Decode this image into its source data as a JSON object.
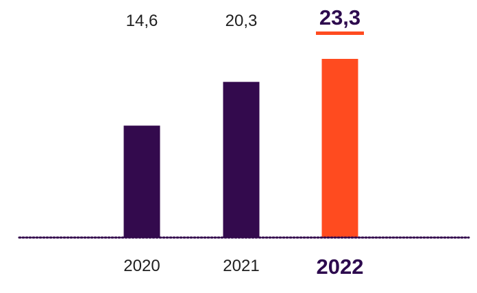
{
  "chart_data": {
    "type": "bar",
    "categories": [
      "2020",
      "2021",
      "2022"
    ],
    "values": [
      14.6,
      20.3,
      23.3
    ],
    "value_labels": [
      "14,6",
      "20,3",
      "23,3"
    ],
    "highlight_index": 2,
    "ylim": [
      0,
      25
    ],
    "grid": false,
    "legend": "none",
    "colors": {
      "bar": "#330a4d",
      "highlight_bar": "#ff4b1f",
      "highlight_underline": "#ff4b1f",
      "baseline": "#330a4d",
      "label_text": "#1f1f1f",
      "highlight_text": "#2d0a4e"
    }
  }
}
